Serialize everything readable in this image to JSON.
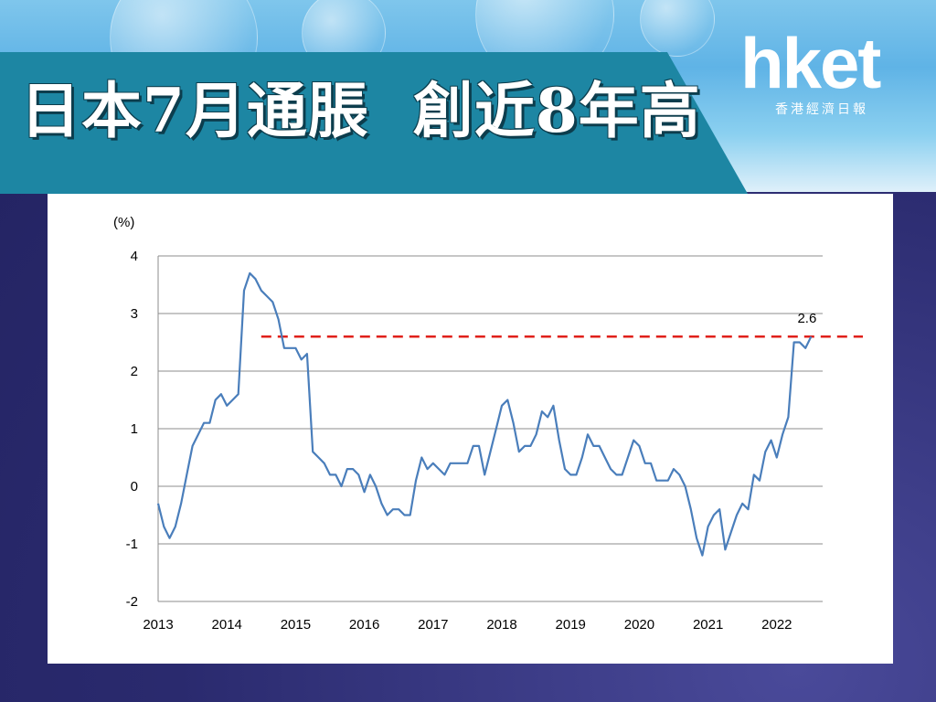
{
  "header": {
    "title": "日本7月通脹  創近8年高"
  },
  "logo": {
    "main": "hket",
    "sub": "香港經濟日報"
  },
  "chart_data": {
    "type": "line",
    "ylabel": "(%)",
    "ylim": [
      -2,
      4
    ],
    "yticks": [
      "4",
      "3",
      "2",
      "1",
      "0",
      "-1",
      "-2"
    ],
    "xlim": [
      2013,
      2022.667
    ],
    "xticks": [
      "2013",
      "2014",
      "2015",
      "2016",
      "2017",
      "2018",
      "2019",
      "2020",
      "2021",
      "2022"
    ],
    "grid": "horizontal",
    "line_color": "#4a7ebb",
    "reference_line": {
      "y": 2.6,
      "color": "#e0201a",
      "style": "dashed",
      "x_start": 2014.5
    },
    "annotation": "2.6",
    "series": [
      {
        "start_year": 2013,
        "frequency": "monthly",
        "values": [
          -0.3,
          -0.7,
          -0.9,
          -0.7,
          -0.3,
          0.2,
          0.7,
          0.9,
          1.1,
          1.1,
          1.5,
          1.6,
          1.4,
          1.5,
          1.6,
          3.4,
          3.7,
          3.6,
          3.4,
          3.3,
          3.2,
          2.9,
          2.4,
          2.4,
          2.4,
          2.2,
          2.3,
          0.6,
          0.5,
          0.4,
          0.2,
          0.2,
          0.0,
          0.3,
          0.3,
          0.2,
          -0.1,
          0.2,
          0.0,
          -0.3,
          -0.5,
          -0.4,
          -0.4,
          -0.5,
          -0.5,
          0.1,
          0.5,
          0.3,
          0.4,
          0.3,
          0.2,
          0.4,
          0.4,
          0.4,
          0.4,
          0.7,
          0.7,
          0.2,
          0.6,
          1.0,
          1.4,
          1.5,
          1.1,
          0.6,
          0.7,
          0.7,
          0.9,
          1.3,
          1.2,
          1.4,
          0.8,
          0.3,
          0.2,
          0.2,
          0.5,
          0.9,
          0.7,
          0.7,
          0.5,
          0.3,
          0.2,
          0.2,
          0.5,
          0.8,
          0.7,
          0.4,
          0.4,
          0.1,
          0.1,
          0.1,
          0.3,
          0.2,
          0.0,
          -0.4,
          -0.9,
          -1.2,
          -0.7,
          -0.5,
          -0.4,
          -1.1,
          -0.8,
          -0.5,
          -0.3,
          -0.4,
          0.2,
          0.1,
          0.6,
          0.8,
          0.5,
          0.9,
          1.2,
          2.5,
          2.5,
          2.4,
          2.6
        ]
      }
    ]
  }
}
